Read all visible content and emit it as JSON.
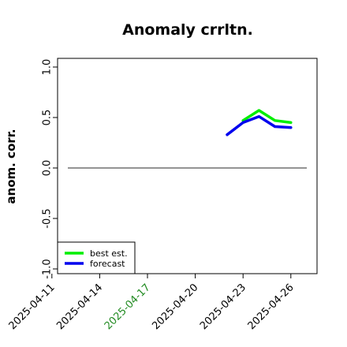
{
  "chart_data": {
    "type": "line",
    "title": "Anomaly crrltn.",
    "xlabel": "",
    "ylabel": "anom. corr.",
    "ylim": [
      -1.0,
      1.0
    ],
    "yticks": [
      "-1.0",
      "-0.5",
      "0.0",
      "0.5",
      "1.0"
    ],
    "x_dates": [
      "2025-04-12",
      "2025-04-13",
      "2025-04-14",
      "2025-04-15",
      "2025-04-16",
      "2025-04-17",
      "2025-04-18",
      "2025-04-19",
      "2025-04-20",
      "2025-04-21",
      "2025-04-22",
      "2025-04-23",
      "2025-04-24",
      "2025-04-25",
      "2025-04-26",
      "2025-04-27"
    ],
    "xticks": [
      {
        "label": "2025-04-11",
        "color": "#000000"
      },
      {
        "label": "2025-04-14",
        "color": "#000000"
      },
      {
        "label": "2025-04-17",
        "color": "#228b22"
      },
      {
        "label": "2025-04-20",
        "color": "#000000"
      },
      {
        "label": "2025-04-23",
        "color": "#000000"
      },
      {
        "label": "2025-04-26",
        "color": "#000000"
      }
    ],
    "series": [
      {
        "name": "best est.",
        "color": "#00ee00",
        "x": [
          "2025-04-23",
          "2025-04-24",
          "2025-04-25",
          "2025-04-26"
        ],
        "y": [
          0.47,
          0.57,
          0.47,
          0.45
        ]
      },
      {
        "name": "forecast",
        "color": "#0000ee",
        "x": [
          "2025-04-22",
          "2025-04-23",
          "2025-04-24",
          "2025-04-25",
          "2025-04-26"
        ],
        "y": [
          0.33,
          0.45,
          0.51,
          0.41,
          0.4
        ]
      }
    ],
    "reference_line": {
      "y": 0.0,
      "color": "#555555"
    },
    "legend": {
      "position": "bottom-left",
      "entries": [
        "best est.",
        "forecast"
      ]
    },
    "grid": false
  }
}
